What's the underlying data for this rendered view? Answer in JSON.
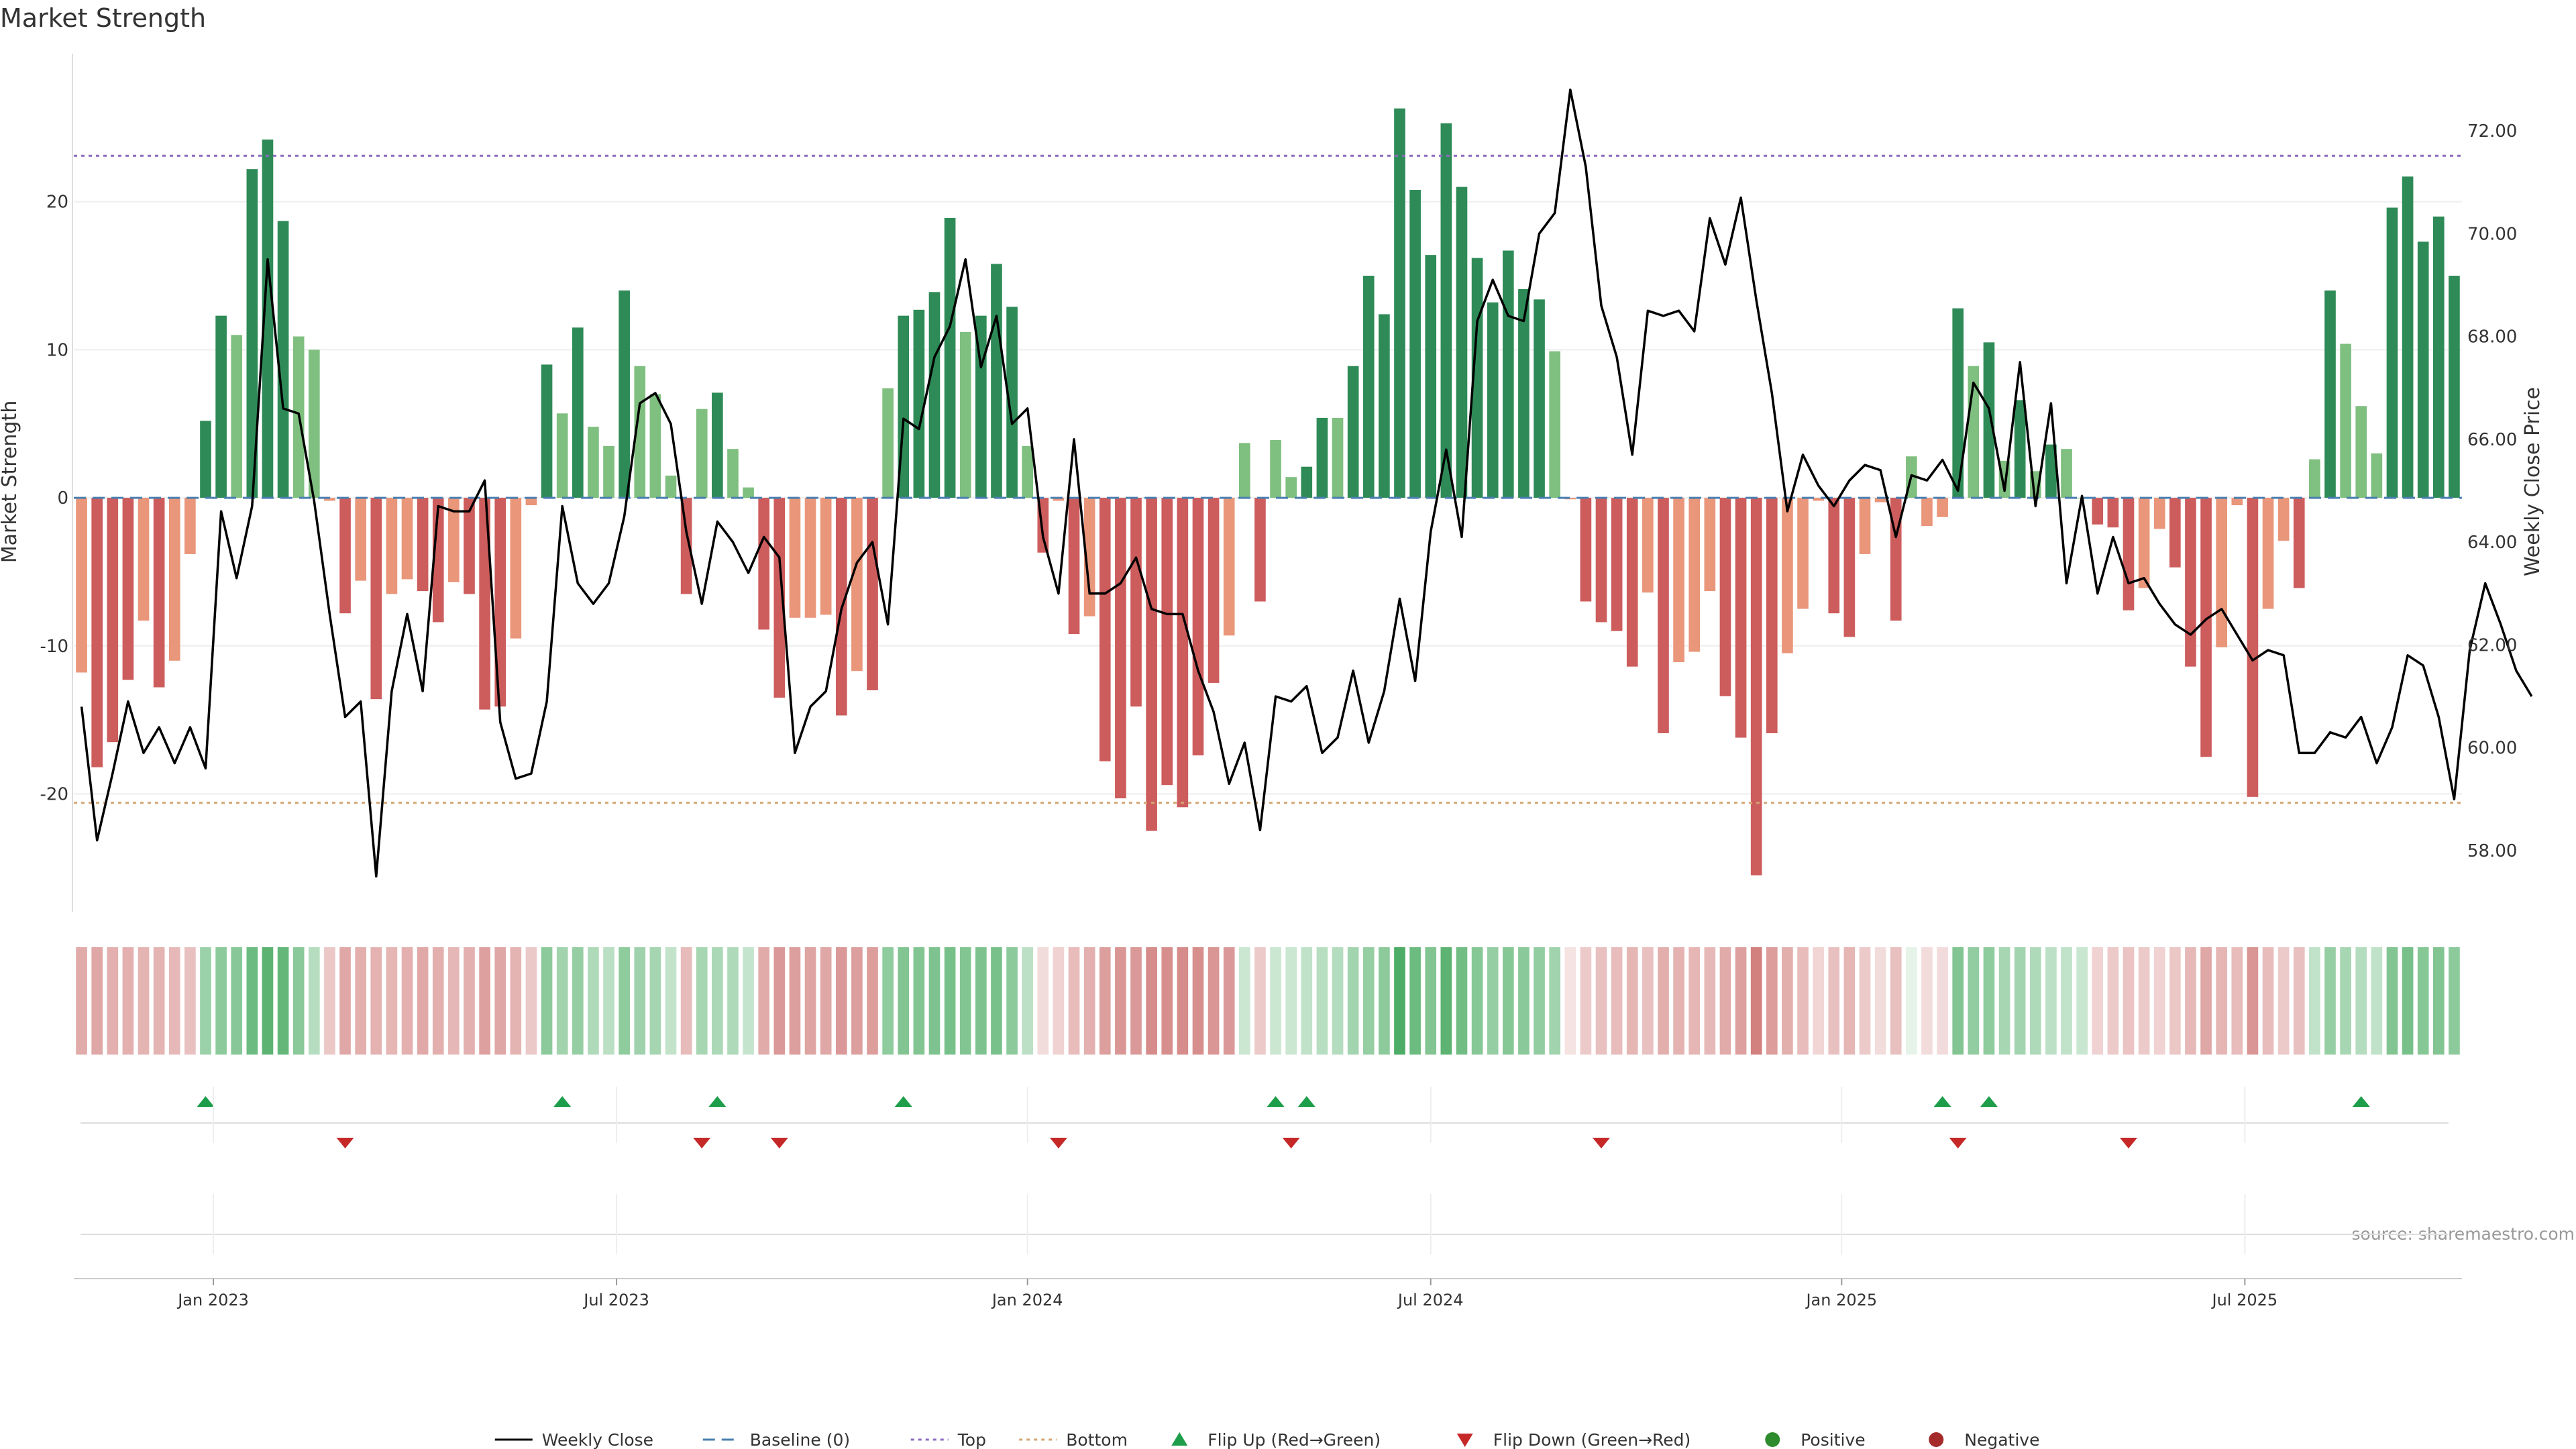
{
  "chart_data": {
    "type": "bar",
    "title": "Market Strength",
    "ylabel": "Market Strength",
    "y2label": "Weekly Close Price",
    "source": "source: sharemaestro.com",
    "ylim": [
      -28,
      30
    ],
    "y2lim": [
      56.8,
      73.5
    ],
    "y_ticks": [
      -20,
      -10,
      0,
      10,
      20
    ],
    "y2_ticks": [
      "58.00",
      "60.00",
      "62.00",
      "64.00",
      "66.00",
      "68.00",
      "70.00",
      "72.00"
    ],
    "top_level": 23.1,
    "bottom_level": -20.6,
    "grid": true,
    "legend_position": "bottom-center",
    "colors": {
      "pos_strong": "#2e8b57",
      "pos_weak": "#7fbf7f",
      "neg_strong": "#cd5c5c",
      "neg_weak": "#e9967a",
      "price": "#000000",
      "baseline": "#4a7fb0",
      "top": "#8e6bbf",
      "bottom": "#d4a574",
      "flip_up": "#1e9e4a",
      "flip_down": "#c62828",
      "positive": "#2e8b2e",
      "negative": "#a52a2a"
    },
    "x_tick_labels": [
      {
        "label": "Jan 2023",
        "week": 8.5
      },
      {
        "label": "Jul 2023",
        "week": 34.5
      },
      {
        "label": "Jan 2024",
        "week": 61
      },
      {
        "label": "Jul 2024",
        "week": 87
      },
      {
        "label": "Jan 2025",
        "week": 113.5
      },
      {
        "label": "Jul 2025",
        "week": 139.5
      }
    ],
    "strength": [
      -11.8,
      -18.2,
      -16.5,
      -12.3,
      -8.3,
      -12.8,
      -11,
      -3.8,
      5.2,
      12.3,
      11,
      22.2,
      24.2,
      18.7,
      10.9,
      10,
      -0.2,
      -7.8,
      -5.6,
      -13.6,
      -6.5,
      -5.5,
      -6.3,
      -8.4,
      -5.7,
      -6.5,
      -14.3,
      -14.1,
      -9.5,
      -0.5,
      9,
      5.7,
      11.5,
      4.8,
      3.5,
      14,
      8.9,
      7,
      1.5,
      -6.5,
      6,
      7.1,
      3.3,
      0.7,
      -8.9,
      -13.5,
      -8.1,
      -8.1,
      -7.9,
      -14.7,
      -11.7,
      -13,
      7.4,
      12.3,
      12.7,
      13.9,
      18.9,
      11.2,
      12.3,
      15.8,
      12.9,
      3.5,
      -3.7,
      -0.2,
      -9.2,
      -8,
      -17.8,
      -20.3,
      -14.1,
      -22.5,
      -19.4,
      -20.9,
      -17.4,
      -12.5,
      -9.3,
      3.7,
      -7,
      3.9,
      1.4,
      2.1,
      5.4,
      5.4,
      8.9,
      15,
      12.4,
      26.3,
      20.8,
      16.4,
      25.3,
      21,
      16.2,
      13.2,
      16.7,
      14.1,
      13.4,
      9.9,
      -0.1,
      -7,
      -8.4,
      -9,
      -11.4,
      -6.4,
      -15.9,
      -11.1,
      -10.4,
      -6.3,
      -13.4,
      -16.2,
      -25.5,
      -15.9,
      -10.5,
      -7.5,
      -0.2,
      -7.8,
      -9.4,
      -3.8,
      -0.3,
      -8.3,
      2.8,
      -1.9,
      -1.3,
      12.8,
      8.9,
      10.5,
      2.5,
      6.6,
      1.8,
      3.6,
      3.3,
      0,
      -1.8,
      -2,
      -7.6,
      -6.1,
      -2.1,
      -4.7,
      -11.4,
      -17.5,
      -10.1,
      -0.5,
      -20.2,
      -7.5,
      -2.9,
      -6.1,
      2.6,
      14,
      10.4,
      6.2,
      3,
      19.6,
      21.7,
      17.3,
      19,
      15
    ],
    "close": [
      60.8,
      58.2,
      59.5,
      60.9,
      59.9,
      60.4,
      59.7,
      60.4,
      59.6,
      64.6,
      63.3,
      64.7,
      69.5,
      66.6,
      66.5,
      64.8,
      62.6,
      60.6,
      60.9,
      57.5,
      61.1,
      62.6,
      61.1,
      64.7,
      64.6,
      64.6,
      65.2,
      60.5,
      59.4,
      59.5,
      60.9,
      64.7,
      63.2,
      62.8,
      63.2,
      64.5,
      66.7,
      66.9,
      66.3,
      64.2,
      62.8,
      64.4,
      64.0,
      63.4,
      64.1,
      63.7,
      59.9,
      60.8,
      61.1,
      62.7,
      63.6,
      64.0,
      62.4,
      66.4,
      66.2,
      67.6,
      68.2,
      69.5,
      67.4,
      68.4,
      66.3,
      66.6,
      64.1,
      63.0,
      66.0,
      63.0,
      63.0,
      63.2,
      63.7,
      62.7,
      62.6,
      62.6,
      61.5,
      60.7,
      59.3,
      60.1,
      58.4,
      61.0,
      60.9,
      61.2,
      59.9,
      60.2,
      61.5,
      60.1,
      61.1,
      62.9,
      61.3,
      64.2,
      65.8,
      64.1,
      68.3,
      69.1,
      68.4,
      68.3,
      70.0,
      70.4,
      72.8,
      71.3,
      68.6,
      67.6,
      65.7,
      68.5,
      68.4,
      68.5,
      68.1,
      70.3,
      69.4,
      70.7,
      68.7,
      66.9,
      64.6,
      65.7,
      65.1,
      64.7,
      65.2,
      65.5,
      65.4,
      64.1,
      65.3,
      65.2,
      65.6,
      65.0,
      67.1,
      66.6,
      65.0,
      67.5,
      64.7,
      66.7,
      63.2,
      64.9,
      63.0,
      64.1,
      63.2,
      63.3,
      62.8,
      62.4,
      62.2,
      62.5,
      62.7,
      62.2,
      61.7,
      61.9,
      61.8,
      59.9,
      59.9,
      60.3,
      60.2,
      60.6,
      59.7,
      60.4,
      61.8,
      61.6,
      60.6,
      59.0,
      61.9,
      63.2,
      62.4,
      61.5,
      61.0
    ],
    "heat": [
      0.48,
      0.5,
      0.45,
      0.45,
      0.43,
      0.43,
      0.4,
      0.36,
      0.48,
      0.55,
      0.57,
      0.7,
      0.78,
      0.74,
      0.56,
      0.35,
      0.32,
      0.5,
      0.46,
      0.44,
      0.42,
      0.45,
      0.49,
      0.46,
      0.41,
      0.45,
      0.54,
      0.5,
      0.43,
      0.31,
      0.55,
      0.45,
      0.5,
      0.38,
      0.33,
      0.54,
      0.46,
      0.43,
      0.29,
      0.39,
      0.42,
      0.4,
      0.38,
      0.28,
      0.48,
      0.58,
      0.55,
      0.52,
      0.5,
      0.58,
      0.55,
      0.56,
      0.54,
      0.6,
      0.6,
      0.62,
      0.65,
      0.6,
      0.62,
      0.64,
      0.55,
      0.32,
      0.2,
      0.26,
      0.38,
      0.45,
      0.55,
      0.6,
      0.58,
      0.66,
      0.64,
      0.66,
      0.64,
      0.6,
      0.58,
      0.25,
      0.3,
      0.25,
      0.25,
      0.3,
      0.34,
      0.36,
      0.44,
      0.5,
      0.55,
      0.85,
      0.7,
      0.6,
      0.78,
      0.68,
      0.58,
      0.5,
      0.58,
      0.56,
      0.52,
      0.45,
      0.16,
      0.3,
      0.36,
      0.38,
      0.42,
      0.36,
      0.46,
      0.44,
      0.42,
      0.4,
      0.48,
      0.54,
      0.72,
      0.56,
      0.46,
      0.38,
      0.24,
      0.36,
      0.42,
      0.3,
      0.2,
      0.36,
      0.12,
      0.2,
      0.2,
      0.6,
      0.52,
      0.54,
      0.42,
      0.44,
      0.38,
      0.32,
      0.3,
      0.26,
      0.26,
      0.3,
      0.34,
      0.3,
      0.26,
      0.32,
      0.4,
      0.5,
      0.42,
      0.38,
      0.6,
      0.38,
      0.3,
      0.36,
      0.3,
      0.5,
      0.42,
      0.36,
      0.3,
      0.6,
      0.65,
      0.58,
      0.6,
      0.55
    ],
    "flip_up_weeks": [
      8,
      31,
      41,
      53,
      77,
      79,
      120,
      123,
      147
    ],
    "flip_down_weeks": [
      17,
      40,
      45,
      63,
      78,
      98,
      121,
      132
    ],
    "legend": [
      {
        "label": "Weekly Close",
        "kind": "line-solid",
        "color_key": "price"
      },
      {
        "label": "Baseline (0)",
        "kind": "line-dash",
        "color_key": "baseline"
      },
      {
        "label": "Top",
        "kind": "line-dot",
        "color_key": "top"
      },
      {
        "label": "Bottom",
        "kind": "line-dot",
        "color_key": "bottom"
      },
      {
        "label": "Flip Up (Red→Green)",
        "kind": "tri-up",
        "color_key": "flip_up"
      },
      {
        "label": "Flip Down (Green→Red)",
        "kind": "tri-down",
        "color_key": "flip_down"
      },
      {
        "label": "Positive",
        "kind": "dot",
        "color_key": "positive"
      },
      {
        "label": "Negative",
        "kind": "dot",
        "color_key": "negative"
      }
    ]
  }
}
